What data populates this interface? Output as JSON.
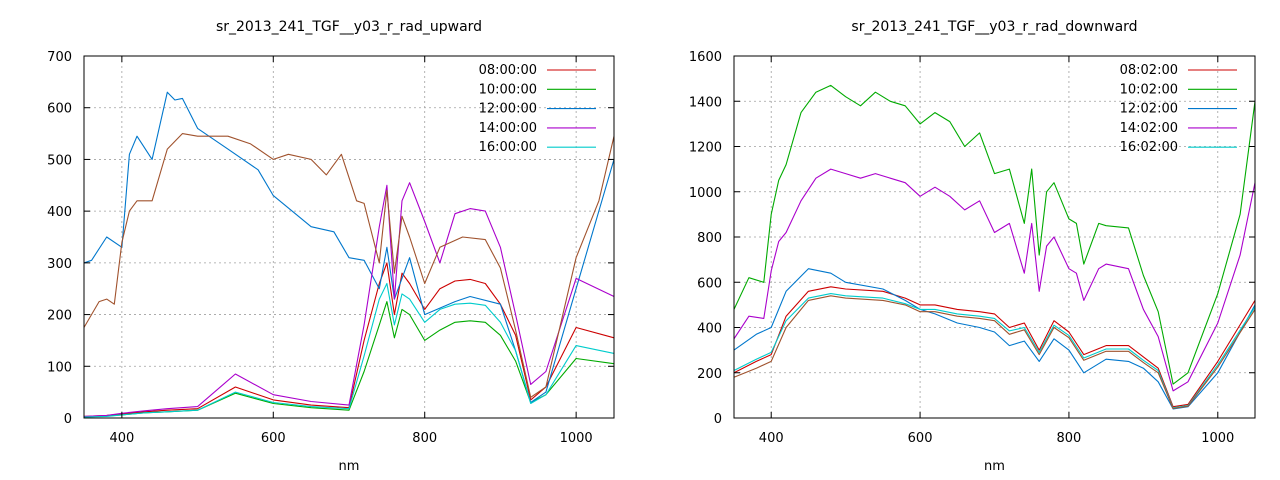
{
  "chart_data": [
    {
      "type": "line",
      "title": "sr_2013_241_TGF__y03_r_rad_upward",
      "xlabel": "nm",
      "ylabel": "",
      "xlim": [
        350,
        1050
      ],
      "ylim": [
        0,
        700
      ],
      "xticks": [
        400,
        600,
        800,
        1000
      ],
      "yticks": [
        0,
        100,
        200,
        300,
        400,
        500,
        600,
        700
      ],
      "grid": true,
      "legend_position": "top-right",
      "series": [
        {
          "name": "08:00:00",
          "color": "#cc0000",
          "x": [
            350,
            380,
            400,
            430,
            460,
            500,
            550,
            600,
            650,
            700,
            720,
            740,
            750,
            760,
            770,
            780,
            800,
            820,
            840,
            860,
            880,
            900,
            920,
            940,
            960,
            1000,
            1050
          ],
          "y": [
            3,
            5,
            8,
            12,
            15,
            18,
            60,
            35,
            25,
            20,
            150,
            260,
            300,
            200,
            280,
            260,
            210,
            250,
            265,
            268,
            260,
            220,
            160,
            35,
            60,
            175,
            155
          ]
        },
        {
          "name": "10:00:00",
          "color": "#00aa00",
          "x": [
            350,
            380,
            400,
            430,
            460,
            500,
            550,
            600,
            650,
            700,
            720,
            740,
            750,
            760,
            770,
            780,
            800,
            820,
            840,
            860,
            880,
            900,
            920,
            940,
            960,
            1000,
            1050
          ],
          "y": [
            2,
            4,
            6,
            10,
            12,
            15,
            48,
            28,
            20,
            15,
            90,
            180,
            225,
            155,
            210,
            200,
            150,
            170,
            185,
            188,
            185,
            160,
            110,
            30,
            45,
            115,
            105
          ]
        },
        {
          "name": "12:00:00",
          "color": "#0077cc",
          "x": [
            350,
            360,
            380,
            400,
            410,
            420,
            440,
            460,
            470,
            480,
            500,
            540,
            580,
            600,
            650,
            680,
            700,
            720,
            740,
            750,
            760,
            780,
            800,
            840,
            860,
            900,
            920,
            940,
            960,
            1000,
            1050
          ],
          "y": [
            300,
            305,
            350,
            330,
            510,
            545,
            500,
            630,
            615,
            618,
            560,
            520,
            480,
            430,
            370,
            360,
            310,
            305,
            250,
            330,
            230,
            310,
            200,
            225,
            235,
            220,
            130,
            30,
            50,
            250,
            500
          ]
        },
        {
          "name": "14:00:00",
          "color": "#aa00cc",
          "x": [
            350,
            380,
            400,
            430,
            460,
            500,
            550,
            600,
            650,
            700,
            720,
            740,
            750,
            760,
            770,
            780,
            800,
            820,
            840,
            860,
            880,
            900,
            920,
            940,
            960,
            1000,
            1050
          ],
          "y": [
            3,
            5,
            9,
            14,
            18,
            22,
            85,
            45,
            32,
            25,
            180,
            370,
            450,
            230,
            420,
            455,
            380,
            300,
            395,
            405,
            400,
            330,
            200,
            65,
            90,
            270,
            235
          ]
        },
        {
          "name": "16:00:00",
          "color": "#00cccc",
          "x": [
            350,
            380,
            400,
            430,
            460,
            500,
            550,
            600,
            650,
            700,
            720,
            740,
            750,
            760,
            770,
            780,
            800,
            820,
            840,
            860,
            880,
            900,
            920,
            940,
            960,
            1000,
            1050
          ],
          "y": [
            2,
            3,
            6,
            10,
            12,
            15,
            50,
            30,
            22,
            18,
            120,
            230,
            260,
            180,
            240,
            230,
            185,
            210,
            220,
            222,
            218,
            185,
            130,
            28,
            45,
            140,
            125
          ]
        },
        {
          "name": "",
          "color": "#a0522d",
          "x": [
            350,
            370,
            380,
            390,
            400,
            410,
            420,
            440,
            460,
            480,
            500,
            540,
            570,
            600,
            620,
            650,
            670,
            690,
            710,
            720,
            740,
            750,
            760,
            770,
            780,
            800,
            820,
            850,
            880,
            900,
            920,
            940,
            960,
            1000,
            1030,
            1050
          ],
          "y": [
            175,
            225,
            230,
            220,
            340,
            400,
            420,
            420,
            520,
            550,
            545,
            545,
            530,
            500,
            510,
            500,
            470,
            510,
            420,
            415,
            300,
            440,
            280,
            390,
            350,
            260,
            330,
            350,
            345,
            290,
            170,
            40,
            60,
            310,
            420,
            545
          ]
        }
      ]
    },
    {
      "type": "line",
      "title": "sr_2013_241_TGF__y03_r_rad_downward",
      "xlabel": "nm",
      "ylabel": "",
      "xlim": [
        350,
        1050
      ],
      "ylim": [
        0,
        1600
      ],
      "xticks": [
        400,
        600,
        800,
        1000
      ],
      "yticks": [
        0,
        200,
        400,
        600,
        800,
        1000,
        1200,
        1400,
        1600
      ],
      "grid": true,
      "legend_position": "top-right",
      "series": [
        {
          "name": "08:02:00",
          "color": "#cc0000",
          "x": [
            350,
            380,
            400,
            420,
            450,
            480,
            500,
            550,
            580,
            600,
            620,
            650,
            680,
            700,
            720,
            740,
            760,
            780,
            800,
            820,
            850,
            880,
            900,
            920,
            940,
            960,
            1000,
            1050
          ],
          "y": [
            200,
            250,
            280,
            450,
            560,
            580,
            570,
            560,
            530,
            500,
            500,
            480,
            470,
            460,
            400,
            420,
            300,
            430,
            380,
            280,
            320,
            320,
            270,
            220,
            50,
            60,
            250,
            520
          ]
        },
        {
          "name": "10:02:00",
          "color": "#00aa00",
          "x": [
            350,
            370,
            390,
            400,
            410,
            420,
            440,
            460,
            480,
            500,
            520,
            540,
            560,
            580,
            600,
            620,
            640,
            660,
            680,
            700,
            720,
            740,
            750,
            760,
            770,
            780,
            800,
            810,
            820,
            840,
            850,
            880,
            900,
            920,
            940,
            960,
            1000,
            1030,
            1050
          ],
          "y": [
            480,
            620,
            600,
            900,
            1050,
            1120,
            1350,
            1440,
            1470,
            1420,
            1380,
            1440,
            1400,
            1380,
            1300,
            1350,
            1310,
            1200,
            1260,
            1080,
            1100,
            860,
            1100,
            720,
            1000,
            1040,
            880,
            860,
            680,
            860,
            850,
            840,
            630,
            470,
            150,
            200,
            550,
            900,
            1400
          ]
        },
        {
          "name": "12:02:00",
          "color": "#0077cc",
          "x": [
            350,
            380,
            400,
            420,
            450,
            480,
            500,
            550,
            580,
            600,
            620,
            650,
            680,
            700,
            720,
            740,
            760,
            780,
            800,
            820,
            850,
            880,
            900,
            920,
            940,
            960,
            1000,
            1050
          ],
          "y": [
            300,
            370,
            400,
            560,
            660,
            640,
            600,
            570,
            520,
            480,
            460,
            420,
            400,
            380,
            320,
            340,
            250,
            350,
            300,
            200,
            260,
            250,
            220,
            160,
            40,
            50,
            200,
            500
          ]
        },
        {
          "name": "14:02:00",
          "color": "#aa00cc",
          "x": [
            350,
            370,
            390,
            400,
            410,
            420,
            440,
            460,
            480,
            500,
            520,
            540,
            560,
            580,
            600,
            620,
            640,
            660,
            680,
            700,
            720,
            740,
            750,
            760,
            770,
            780,
            800,
            810,
            820,
            840,
            850,
            880,
            900,
            920,
            940,
            960,
            1000,
            1030,
            1050
          ],
          "y": [
            350,
            450,
            440,
            650,
            780,
            820,
            960,
            1060,
            1100,
            1080,
            1060,
            1080,
            1060,
            1040,
            980,
            1020,
            980,
            920,
            960,
            820,
            860,
            640,
            860,
            560,
            760,
            800,
            660,
            640,
            520,
            660,
            680,
            660,
            480,
            360,
            120,
            160,
            420,
            720,
            1040
          ]
        },
        {
          "name": "16:02:00",
          "color": "#00cccc",
          "x": [
            350,
            380,
            400,
            420,
            450,
            480,
            500,
            550,
            580,
            600,
            620,
            650,
            680,
            700,
            720,
            740,
            760,
            780,
            800,
            820,
            850,
            880,
            900,
            920,
            940,
            960,
            1000,
            1050
          ],
          "y": [
            210,
            260,
            290,
            430,
            530,
            550,
            540,
            530,
            505,
            480,
            480,
            460,
            450,
            440,
            385,
            400,
            290,
            410,
            365,
            265,
            305,
            305,
            255,
            210,
            45,
            55,
            235,
            490
          ]
        },
        {
          "name": "",
          "color": "#a0522d",
          "x": [
            350,
            380,
            400,
            420,
            450,
            480,
            500,
            550,
            580,
            600,
            620,
            650,
            680,
            700,
            720,
            740,
            760,
            780,
            800,
            820,
            850,
            880,
            900,
            920,
            940,
            960,
            1000,
            1050
          ],
          "y": [
            180,
            220,
            250,
            400,
            520,
            540,
            530,
            520,
            500,
            470,
            470,
            450,
            440,
            430,
            370,
            390,
            280,
            400,
            355,
            255,
            295,
            295,
            245,
            200,
            42,
            52,
            225,
            480
          ]
        }
      ]
    }
  ]
}
